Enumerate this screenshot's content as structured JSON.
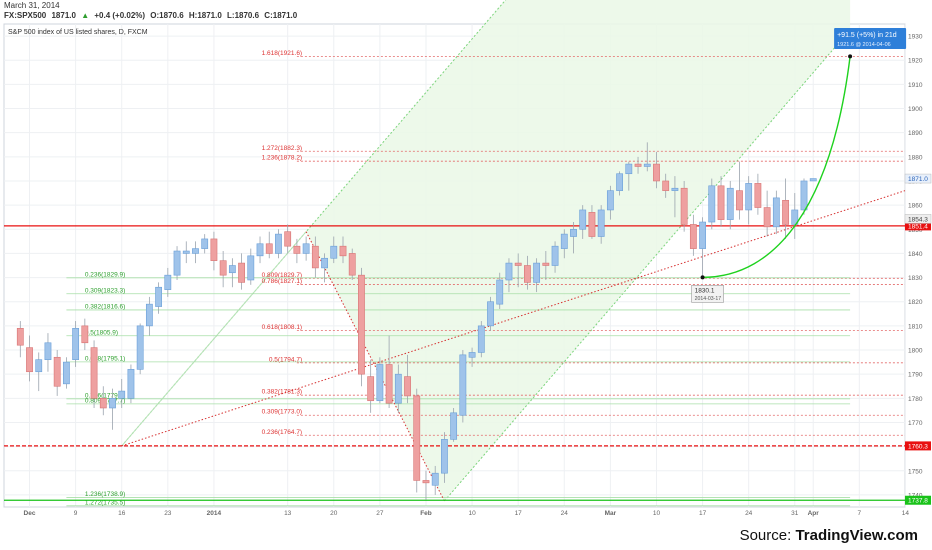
{
  "header": {
    "date": "March 31, 2014",
    "symbol": "FX:SPX500",
    "last": "1871.0",
    "change": "+0.4 (+0.02%)",
    "open": "O:1870.6",
    "high": "H:1871.0",
    "low": "L:1870.6",
    "close": "C:1871.0"
  },
  "source": {
    "prefix": "Source: ",
    "brand": "TradingView.com"
  },
  "chart_data": {
    "type": "candlestick",
    "title": "S&P 500 index of US listed shares, D, FXCM",
    "ylim": [
      1735,
      1935
    ],
    "y_ticks": [
      1740,
      1750,
      1760,
      1770,
      1780,
      1790,
      1800,
      1810,
      1820,
      1830,
      1840,
      1850,
      1860,
      1870,
      1880,
      1890,
      1900,
      1910,
      1920,
      1930
    ],
    "x_ticks": [
      {
        "label": "Dec",
        "i": 1
      },
      {
        "label": "9",
        "i": 6
      },
      {
        "label": "16",
        "i": 11
      },
      {
        "label": "23",
        "i": 16
      },
      {
        "label": "2014",
        "i": 21
      },
      {
        "label": "13",
        "i": 29
      },
      {
        "label": "20",
        "i": 34
      },
      {
        "label": "27",
        "i": 39
      },
      {
        "label": "Feb",
        "i": 44
      },
      {
        "label": "10",
        "i": 49
      },
      {
        "label": "17",
        "i": 54
      },
      {
        "label": "24",
        "i": 59
      },
      {
        "label": "Mar",
        "i": 64
      },
      {
        "label": "10",
        "i": 69
      },
      {
        "label": "17",
        "i": 74
      },
      {
        "label": "24",
        "i": 79
      },
      {
        "label": "31",
        "i": 84
      },
      {
        "label": "Apr",
        "i": 86
      },
      {
        "label": "7",
        "i": 91
      },
      {
        "label": "14",
        "i": 96
      }
    ],
    "candles": [
      {
        "o": 1809,
        "h": 1812,
        "l": 1797,
        "c": 1802
      },
      {
        "o": 1801,
        "h": 1806,
        "l": 1787,
        "c": 1791
      },
      {
        "o": 1791,
        "h": 1799,
        "l": 1783,
        "c": 1796
      },
      {
        "o": 1796,
        "h": 1807,
        "l": 1791,
        "c": 1803
      },
      {
        "o": 1797,
        "h": 1800,
        "l": 1781,
        "c": 1785
      },
      {
        "o": 1786,
        "h": 1797,
        "l": 1784,
        "c": 1795
      },
      {
        "o": 1796,
        "h": 1812,
        "l": 1793,
        "c": 1809
      },
      {
        "o": 1810,
        "h": 1813,
        "l": 1800,
        "c": 1803
      },
      {
        "o": 1801,
        "h": 1804,
        "l": 1776,
        "c": 1780
      },
      {
        "o": 1780,
        "h": 1785,
        "l": 1773,
        "c": 1776
      },
      {
        "o": 1776,
        "h": 1784,
        "l": 1767,
        "c": 1780
      },
      {
        "o": 1780,
        "h": 1788,
        "l": 1776,
        "c": 1783
      },
      {
        "o": 1780,
        "h": 1794,
        "l": 1778,
        "c": 1792
      },
      {
        "o": 1792,
        "h": 1811,
        "l": 1790,
        "c": 1810
      },
      {
        "o": 1810,
        "h": 1822,
        "l": 1806,
        "c": 1819
      },
      {
        "o": 1818,
        "h": 1828,
        "l": 1815,
        "c": 1826
      },
      {
        "o": 1825,
        "h": 1834,
        "l": 1822,
        "c": 1831
      },
      {
        "o": 1831,
        "h": 1843,
        "l": 1829,
        "c": 1841
      },
      {
        "o": 1840,
        "h": 1845,
        "l": 1836,
        "c": 1841
      },
      {
        "o": 1840,
        "h": 1845,
        "l": 1836,
        "c": 1842
      },
      {
        "o": 1842,
        "h": 1848,
        "l": 1840,
        "c": 1846
      },
      {
        "o": 1846,
        "h": 1849,
        "l": 1833,
        "c": 1837
      },
      {
        "o": 1837,
        "h": 1841,
        "l": 1826,
        "c": 1831
      },
      {
        "o": 1832,
        "h": 1838,
        "l": 1826,
        "c": 1835
      },
      {
        "o": 1836,
        "h": 1840,
        "l": 1825,
        "c": 1828
      },
      {
        "o": 1829,
        "h": 1842,
        "l": 1827,
        "c": 1839
      },
      {
        "o": 1839,
        "h": 1847,
        "l": 1836,
        "c": 1844
      },
      {
        "o": 1844,
        "h": 1849,
        "l": 1838,
        "c": 1840
      },
      {
        "o": 1840,
        "h": 1850,
        "l": 1838,
        "c": 1848
      },
      {
        "o": 1849,
        "h": 1852,
        "l": 1840,
        "c": 1843
      },
      {
        "o": 1843,
        "h": 1846,
        "l": 1836,
        "c": 1840
      },
      {
        "o": 1840,
        "h": 1847,
        "l": 1837,
        "c": 1844
      },
      {
        "o": 1843,
        "h": 1847,
        "l": 1830,
        "c": 1834
      },
      {
        "o": 1834,
        "h": 1840,
        "l": 1828,
        "c": 1838
      },
      {
        "o": 1838,
        "h": 1847,
        "l": 1836,
        "c": 1843
      },
      {
        "o": 1843,
        "h": 1847,
        "l": 1836,
        "c": 1839
      },
      {
        "o": 1840,
        "h": 1842,
        "l": 1829,
        "c": 1831
      },
      {
        "o": 1831,
        "h": 1834,
        "l": 1785,
        "c": 1790
      },
      {
        "o": 1789,
        "h": 1796,
        "l": 1774,
        "c": 1779
      },
      {
        "o": 1779,
        "h": 1797,
        "l": 1778,
        "c": 1794
      },
      {
        "o": 1794,
        "h": 1806,
        "l": 1776,
        "c": 1778
      },
      {
        "o": 1778,
        "h": 1794,
        "l": 1774,
        "c": 1790
      },
      {
        "o": 1789,
        "h": 1798,
        "l": 1778,
        "c": 1781
      },
      {
        "o": 1781,
        "h": 1784,
        "l": 1741,
        "c": 1746
      },
      {
        "o": 1746,
        "h": 1750,
        "l": 1738,
        "c": 1745
      },
      {
        "o": 1744,
        "h": 1752,
        "l": 1740,
        "c": 1749
      },
      {
        "o": 1749,
        "h": 1766,
        "l": 1745,
        "c": 1763
      },
      {
        "o": 1763,
        "h": 1776,
        "l": 1762,
        "c": 1774
      },
      {
        "o": 1773,
        "h": 1800,
        "l": 1770,
        "c": 1798
      },
      {
        "o": 1797,
        "h": 1801,
        "l": 1793,
        "c": 1799
      },
      {
        "o": 1799,
        "h": 1812,
        "l": 1797,
        "c": 1810
      },
      {
        "o": 1810,
        "h": 1822,
        "l": 1808,
        "c": 1820
      },
      {
        "o": 1819,
        "h": 1832,
        "l": 1817,
        "c": 1829
      },
      {
        "o": 1829,
        "h": 1838,
        "l": 1824,
        "c": 1836
      },
      {
        "o": 1836,
        "h": 1840,
        "l": 1826,
        "c": 1835
      },
      {
        "o": 1835,
        "h": 1839,
        "l": 1825,
        "c": 1828
      },
      {
        "o": 1828,
        "h": 1838,
        "l": 1824,
        "c": 1836
      },
      {
        "o": 1836,
        "h": 1841,
        "l": 1829,
        "c": 1835
      },
      {
        "o": 1835,
        "h": 1845,
        "l": 1832,
        "c": 1843
      },
      {
        "o": 1842,
        "h": 1850,
        "l": 1838,
        "c": 1848
      },
      {
        "o": 1847,
        "h": 1853,
        "l": 1840,
        "c": 1850
      },
      {
        "o": 1850,
        "h": 1860,
        "l": 1846,
        "c": 1858
      },
      {
        "o": 1857,
        "h": 1860,
        "l": 1846,
        "c": 1847
      },
      {
        "o": 1847,
        "h": 1860,
        "l": 1844,
        "c": 1858
      },
      {
        "o": 1858,
        "h": 1868,
        "l": 1854,
        "c": 1866
      },
      {
        "o": 1866,
        "h": 1874,
        "l": 1864,
        "c": 1873
      },
      {
        "o": 1873,
        "h": 1878,
        "l": 1866,
        "c": 1877
      },
      {
        "o": 1877,
        "h": 1880,
        "l": 1873,
        "c": 1876
      },
      {
        "o": 1876,
        "h": 1886,
        "l": 1874,
        "c": 1877
      },
      {
        "o": 1877,
        "h": 1882,
        "l": 1867,
        "c": 1870
      },
      {
        "o": 1870,
        "h": 1873,
        "l": 1863,
        "c": 1866
      },
      {
        "o": 1866,
        "h": 1872,
        "l": 1855,
        "c": 1867
      },
      {
        "o": 1867,
        "h": 1870,
        "l": 1849,
        "c": 1852
      },
      {
        "o": 1852,
        "h": 1856,
        "l": 1839,
        "c": 1842
      },
      {
        "o": 1842,
        "h": 1855,
        "l": 1830,
        "c": 1853
      },
      {
        "o": 1853,
        "h": 1871,
        "l": 1850,
        "c": 1868
      },
      {
        "o": 1868,
        "h": 1872,
        "l": 1851,
        "c": 1854
      },
      {
        "o": 1854,
        "h": 1870,
        "l": 1850,
        "c": 1867
      },
      {
        "o": 1866,
        "h": 1878,
        "l": 1854,
        "c": 1858
      },
      {
        "o": 1858,
        "h": 1872,
        "l": 1852,
        "c": 1869
      },
      {
        "o": 1869,
        "h": 1873,
        "l": 1856,
        "c": 1859
      },
      {
        "o": 1859,
        "h": 1866,
        "l": 1847,
        "c": 1851
      },
      {
        "o": 1851,
        "h": 1866,
        "l": 1848,
        "c": 1863
      },
      {
        "o": 1862,
        "h": 1871,
        "l": 1846,
        "c": 1852
      },
      {
        "o": 1852,
        "h": 1865,
        "l": 1846,
        "c": 1858
      },
      {
        "o": 1858,
        "h": 1871,
        "l": 1856,
        "c": 1870
      },
      {
        "o": 1870,
        "h": 1871,
        "l": 1870,
        "c": 1871
      }
    ],
    "hlines": [
      {
        "y": 1851.4,
        "label": "1851.4",
        "color": "#e81010"
      },
      {
        "y": 1760.3,
        "label": "1760.3",
        "color": "#e81010"
      },
      {
        "y": 1737.8,
        "label": "1737.8",
        "color": "#19c219"
      }
    ],
    "price_tags": [
      {
        "y": 1871.0,
        "label": "1871.0",
        "fill": "#e8f0fb",
        "text": "#2962b8"
      },
      {
        "y": 1854.3,
        "label": "1854.3",
        "fill": "#eeeeee",
        "text": "#444444"
      }
    ],
    "fib_red": [
      {
        "y": 1921.6,
        "label": "1.618(1921.6)"
      },
      {
        "y": 1882.3,
        "label": "1.272(1882.3)"
      },
      {
        "y": 1878.2,
        "label": "1.236(1878.2)"
      },
      {
        "y": 1829.7,
        "label": "0.809(1829.7)"
      },
      {
        "y": 1827.1,
        "label": "0.786(1827.1)"
      },
      {
        "y": 1808.1,
        "label": "0.618(1808.1)"
      },
      {
        "y": 1794.7,
        "label": "0.5(1794.7)"
      },
      {
        "y": 1781.3,
        "label": "0.382(1781.3)"
      },
      {
        "y": 1773.0,
        "label": "0.309(1773.0)"
      },
      {
        "y": 1764.7,
        "label": "0.236(1764.7)"
      }
    ],
    "fib_green": [
      {
        "y": 1829.9,
        "label": "0.236(1829.9)"
      },
      {
        "y": 1823.3,
        "label": "0.309(1823.3)"
      },
      {
        "y": 1816.6,
        "label": "0.382(1816.6)"
      },
      {
        "y": 1805.9,
        "label": "0.5(1805.9)"
      },
      {
        "y": 1795.1,
        "label": "0.618(1795.1)"
      },
      {
        "y": 1779.8,
        "label": "0.786(1779.8)"
      },
      {
        "y": 1777.7,
        "label": "0.809(1777.7)"
      },
      {
        "y": 1738.9,
        "label": "1.236(1738.9)"
      },
      {
        "y": 1735.5,
        "label": "1.272(1735.5)"
      }
    ],
    "annotations": {
      "projection_main": "+91.5 (+5%) in 21d",
      "projection_sub": "1921.6  @ 2014-04-06",
      "low_price": "1830.1",
      "low_date": "2014-03-17"
    }
  }
}
